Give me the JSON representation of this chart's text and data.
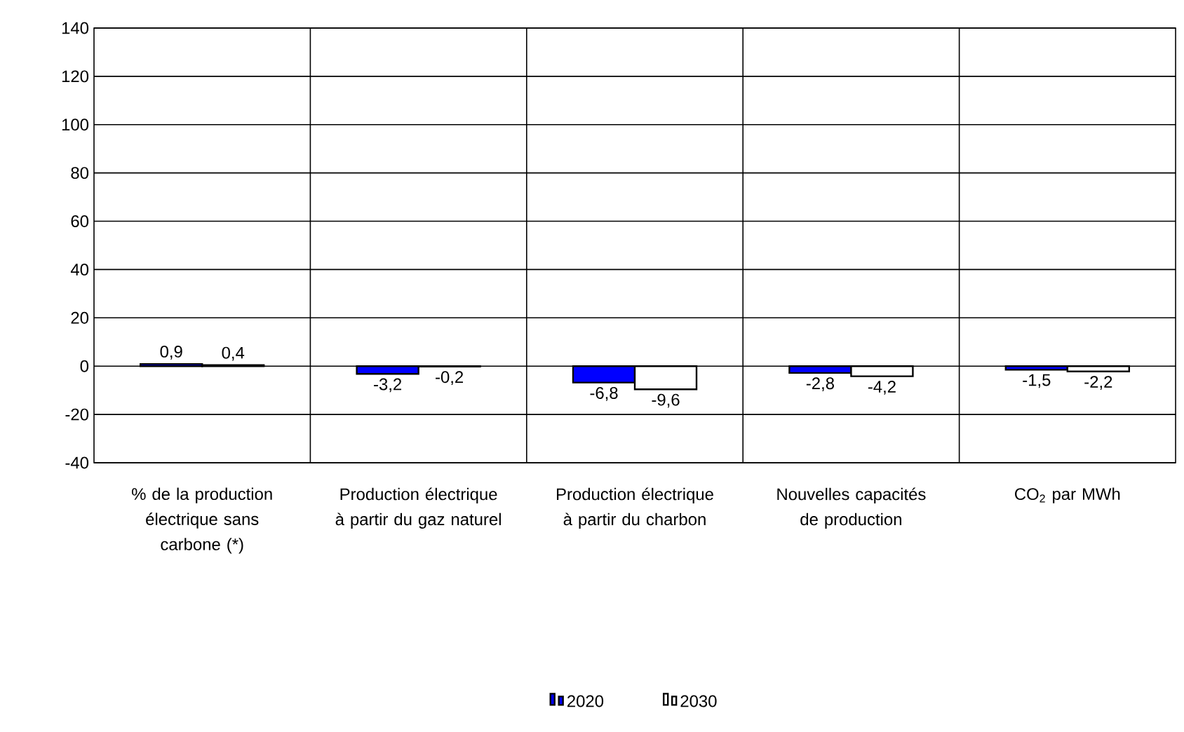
{
  "chart_data": {
    "type": "bar",
    "categories": [
      "% de la production électrique sans carbone (*)",
      "Production électrique à partir du gaz naturel",
      "Production électrique à partir du charbon",
      "Nouvelles capacités de production",
      "CO$_{2}$ par MWh"
    ],
    "series": [
      {
        "name": "2020",
        "color": "#0000ff",
        "values": [
          0.9,
          -3.2,
          -6.8,
          -2.8,
          -1.5
        ],
        "value_labels": [
          "0,9",
          "-3,2",
          "-6,8",
          "-2,8",
          "-1,5"
        ]
      },
      {
        "name": "2030",
        "color": "#ffffff",
        "values": [
          0.4,
          -0.2,
          -9.6,
          -4.2,
          -2.2
        ],
        "value_labels": [
          "0,4",
          "-0,2",
          "-9,6",
          "-4,2",
          "-2,2"
        ]
      }
    ],
    "ylim": [
      -40,
      140
    ],
    "yticks": [
      -40,
      -20,
      0,
      20,
      40,
      60,
      80,
      100,
      120,
      140
    ],
    "grid": true,
    "legend": "bottom"
  }
}
